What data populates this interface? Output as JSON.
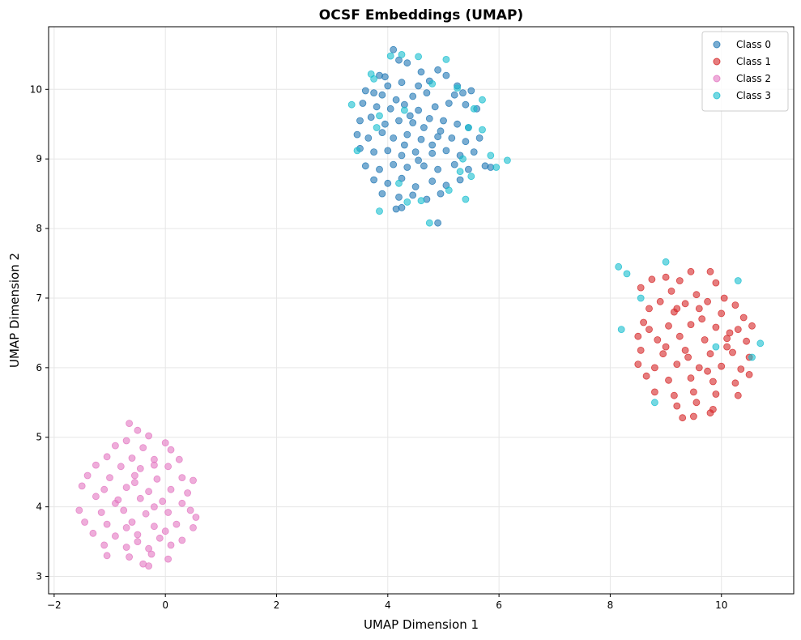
{
  "chart_data": {
    "type": "scatter",
    "title": "OCSF Embeddings (UMAP)",
    "xlabel": "UMAP Dimension 1",
    "ylabel": "UMAP Dimension 2",
    "xlim": [
      -2.1,
      11.3
    ],
    "ylim": [
      2.75,
      10.9
    ],
    "xticks": [
      -2,
      0,
      2,
      4,
      6,
      8,
      10
    ],
    "yticks": [
      3,
      4,
      5,
      6,
      7,
      8,
      9,
      10
    ],
    "grid": true,
    "legend_position": "top-right",
    "series": [
      {
        "name": "Class 0",
        "color": "#1f77b4",
        "points": [
          [
            4.1,
            10.57
          ],
          [
            4.2,
            10.42
          ],
          [
            4.35,
            10.38
          ],
          [
            3.85,
            10.2
          ],
          [
            4.6,
            10.25
          ],
          [
            4.9,
            10.28
          ],
          [
            5.05,
            10.2
          ],
          [
            4.25,
            10.1
          ],
          [
            4.0,
            10.05
          ],
          [
            3.75,
            9.95
          ],
          [
            3.6,
            9.98
          ],
          [
            3.9,
            9.92
          ],
          [
            4.15,
            9.85
          ],
          [
            4.45,
            9.9
          ],
          [
            4.7,
            9.95
          ],
          [
            5.2,
            9.92
          ],
          [
            5.35,
            9.95
          ],
          [
            5.5,
            9.98
          ],
          [
            3.55,
            9.8
          ],
          [
            3.8,
            9.75
          ],
          [
            4.05,
            9.72
          ],
          [
            4.3,
            9.78
          ],
          [
            4.55,
            9.7
          ],
          [
            4.85,
            9.75
          ],
          [
            5.1,
            9.8
          ],
          [
            5.4,
            9.78
          ],
          [
            5.6,
            9.72
          ],
          [
            3.5,
            9.55
          ],
          [
            3.7,
            9.6
          ],
          [
            3.95,
            9.5
          ],
          [
            4.2,
            9.55
          ],
          [
            4.45,
            9.52
          ],
          [
            4.75,
            9.58
          ],
          [
            5.0,
            9.55
          ],
          [
            5.25,
            9.5
          ],
          [
            5.45,
            9.45
          ],
          [
            3.45,
            9.35
          ],
          [
            3.65,
            9.3
          ],
          [
            3.9,
            9.38
          ],
          [
            4.1,
            9.3
          ],
          [
            4.35,
            9.35
          ],
          [
            4.6,
            9.28
          ],
          [
            4.9,
            9.32
          ],
          [
            5.15,
            9.3
          ],
          [
            5.4,
            9.25
          ],
          [
            5.65,
            9.3
          ],
          [
            3.5,
            9.15
          ],
          [
            3.75,
            9.1
          ],
          [
            4.0,
            9.12
          ],
          [
            4.25,
            9.05
          ],
          [
            4.5,
            9.1
          ],
          [
            4.8,
            9.08
          ],
          [
            5.05,
            9.12
          ],
          [
            5.3,
            9.05
          ],
          [
            5.55,
            9.1
          ],
          [
            3.6,
            8.9
          ],
          [
            3.85,
            8.85
          ],
          [
            4.1,
            8.92
          ],
          [
            4.35,
            8.88
          ],
          [
            4.65,
            8.9
          ],
          [
            4.9,
            8.85
          ],
          [
            5.2,
            8.92
          ],
          [
            5.45,
            8.85
          ],
          [
            5.75,
            8.9
          ],
          [
            5.85,
            8.88
          ],
          [
            3.75,
            8.7
          ],
          [
            4.0,
            8.65
          ],
          [
            4.25,
            8.72
          ],
          [
            4.5,
            8.6
          ],
          [
            4.8,
            8.68
          ],
          [
            5.05,
            8.62
          ],
          [
            5.3,
            8.7
          ],
          [
            3.9,
            8.5
          ],
          [
            4.2,
            8.45
          ],
          [
            4.45,
            8.48
          ],
          [
            4.7,
            8.42
          ],
          [
            4.95,
            8.5
          ],
          [
            4.25,
            8.3
          ],
          [
            4.15,
            8.28
          ],
          [
            4.9,
            8.08
          ],
          [
            4.55,
            10.05
          ],
          [
            4.75,
            10.12
          ],
          [
            5.25,
            10.05
          ],
          [
            3.95,
            10.18
          ],
          [
            4.4,
            9.62
          ],
          [
            4.65,
            9.45
          ],
          [
            4.95,
            9.4
          ],
          [
            4.3,
            9.2
          ],
          [
            4.55,
            8.98
          ],
          [
            4.8,
            9.2
          ]
        ]
      },
      {
        "name": "Class 1",
        "color": "#d62728",
        "points": [
          [
            9.45,
            7.38
          ],
          [
            9.8,
            7.38
          ],
          [
            9.0,
            7.3
          ],
          [
            9.25,
            7.25
          ],
          [
            9.9,
            7.22
          ],
          [
            8.75,
            7.27
          ],
          [
            8.55,
            7.15
          ],
          [
            9.1,
            7.1
          ],
          [
            9.55,
            7.05
          ],
          [
            10.05,
            7.0
          ],
          [
            8.9,
            6.95
          ],
          [
            9.35,
            6.92
          ],
          [
            9.75,
            6.95
          ],
          [
            10.25,
            6.9
          ],
          [
            8.7,
            6.85
          ],
          [
            9.15,
            6.8
          ],
          [
            9.6,
            6.85
          ],
          [
            10.0,
            6.78
          ],
          [
            10.4,
            6.72
          ],
          [
            8.6,
            6.65
          ],
          [
            9.05,
            6.6
          ],
          [
            9.45,
            6.62
          ],
          [
            9.9,
            6.58
          ],
          [
            10.3,
            6.55
          ],
          [
            10.55,
            6.6
          ],
          [
            8.5,
            6.45
          ],
          [
            8.85,
            6.4
          ],
          [
            9.25,
            6.45
          ],
          [
            9.7,
            6.4
          ],
          [
            10.1,
            6.42
          ],
          [
            10.45,
            6.38
          ],
          [
            8.55,
            6.25
          ],
          [
            8.95,
            6.2
          ],
          [
            9.35,
            6.25
          ],
          [
            9.8,
            6.2
          ],
          [
            10.2,
            6.22
          ],
          [
            10.5,
            6.15
          ],
          [
            8.5,
            6.05
          ],
          [
            8.8,
            6.0
          ],
          [
            9.2,
            6.05
          ],
          [
            9.6,
            6.0
          ],
          [
            10.0,
            6.02
          ],
          [
            10.35,
            5.98
          ],
          [
            10.5,
            5.9
          ],
          [
            8.65,
            5.88
          ],
          [
            9.05,
            5.82
          ],
          [
            9.45,
            5.85
          ],
          [
            9.85,
            5.8
          ],
          [
            10.25,
            5.78
          ],
          [
            8.8,
            5.65
          ],
          [
            9.15,
            5.6
          ],
          [
            9.5,
            5.65
          ],
          [
            9.9,
            5.62
          ],
          [
            10.3,
            5.6
          ],
          [
            9.2,
            5.45
          ],
          [
            9.55,
            5.5
          ],
          [
            9.85,
            5.4
          ],
          [
            9.8,
            5.35
          ],
          [
            9.3,
            5.28
          ],
          [
            9.5,
            5.3
          ],
          [
            9.0,
            6.3
          ],
          [
            9.4,
            6.15
          ],
          [
            9.65,
            6.7
          ],
          [
            10.15,
            6.5
          ],
          [
            8.7,
            6.55
          ],
          [
            9.2,
            6.85
          ],
          [
            9.75,
            5.95
          ],
          [
            10.1,
            6.3
          ]
        ]
      },
      {
        "name": "Class 2",
        "color": "#e377c2",
        "points": [
          [
            -0.65,
            5.2
          ],
          [
            -0.5,
            5.1
          ],
          [
            -0.3,
            5.02
          ],
          [
            -0.7,
            4.95
          ],
          [
            0.0,
            4.92
          ],
          [
            -0.9,
            4.88
          ],
          [
            -0.4,
            4.85
          ],
          [
            0.1,
            4.82
          ],
          [
            -1.05,
            4.72
          ],
          [
            -0.6,
            4.7
          ],
          [
            -0.2,
            4.68
          ],
          [
            0.25,
            4.68
          ],
          [
            -1.25,
            4.6
          ],
          [
            -0.8,
            4.58
          ],
          [
            -0.45,
            4.55
          ],
          [
            0.05,
            4.58
          ],
          [
            -1.4,
            4.45
          ],
          [
            -1.0,
            4.42
          ],
          [
            -0.55,
            4.45
          ],
          [
            -0.15,
            4.4
          ],
          [
            0.3,
            4.42
          ],
          [
            0.5,
            4.38
          ],
          [
            -1.5,
            4.3
          ],
          [
            -1.1,
            4.25
          ],
          [
            -0.7,
            4.28
          ],
          [
            -0.3,
            4.22
          ],
          [
            0.1,
            4.25
          ],
          [
            0.4,
            4.2
          ],
          [
            -1.25,
            4.15
          ],
          [
            -0.85,
            4.1
          ],
          [
            -0.45,
            4.12
          ],
          [
            -0.05,
            4.08
          ],
          [
            0.3,
            4.05
          ],
          [
            -1.55,
            3.95
          ],
          [
            -1.15,
            3.92
          ],
          [
            -0.75,
            3.95
          ],
          [
            -0.35,
            3.9
          ],
          [
            0.05,
            3.92
          ],
          [
            0.45,
            3.95
          ],
          [
            0.55,
            3.85
          ],
          [
            -1.45,
            3.78
          ],
          [
            -1.05,
            3.75
          ],
          [
            -0.6,
            3.78
          ],
          [
            -0.2,
            3.72
          ],
          [
            0.2,
            3.75
          ],
          [
            0.5,
            3.7
          ],
          [
            -1.3,
            3.62
          ],
          [
            -0.9,
            3.58
          ],
          [
            -0.5,
            3.6
          ],
          [
            -0.1,
            3.55
          ],
          [
            0.3,
            3.52
          ],
          [
            -1.1,
            3.45
          ],
          [
            -0.7,
            3.42
          ],
          [
            -0.3,
            3.4
          ],
          [
            0.1,
            3.45
          ],
          [
            -1.05,
            3.3
          ],
          [
            -0.65,
            3.28
          ],
          [
            -0.25,
            3.32
          ],
          [
            0.05,
            3.25
          ],
          [
            -0.4,
            3.18
          ],
          [
            -0.3,
            3.15
          ],
          [
            -0.2,
            4.6
          ],
          [
            -0.55,
            4.35
          ],
          [
            -0.9,
            4.05
          ],
          [
            -0.2,
            4.0
          ],
          [
            -0.7,
            3.7
          ],
          [
            0.0,
            3.65
          ],
          [
            -0.5,
            3.5
          ]
        ]
      },
      {
        "name": "Class 3",
        "color": "#17becf",
        "points": [
          [
            4.25,
            10.5
          ],
          [
            4.05,
            10.48
          ],
          [
            4.55,
            10.47
          ],
          [
            5.05,
            10.43
          ],
          [
            3.7,
            10.22
          ],
          [
            3.75,
            10.15
          ],
          [
            4.8,
            10.08
          ],
          [
            5.25,
            10.02
          ],
          [
            3.35,
            9.78
          ],
          [
            3.85,
            9.62
          ],
          [
            5.7,
            9.85
          ],
          [
            5.55,
            9.72
          ],
          [
            5.45,
            9.45
          ],
          [
            5.7,
            9.42
          ],
          [
            3.45,
            9.12
          ],
          [
            5.35,
            9.0
          ],
          [
            5.85,
            9.05
          ],
          [
            6.15,
            8.98
          ],
          [
            5.95,
            8.88
          ],
          [
            5.3,
            8.82
          ],
          [
            5.5,
            8.75
          ],
          [
            4.2,
            8.65
          ],
          [
            5.1,
            8.55
          ],
          [
            5.4,
            8.42
          ],
          [
            3.85,
            8.25
          ],
          [
            4.35,
            8.38
          ],
          [
            4.75,
            8.08
          ],
          [
            4.6,
            8.4
          ],
          [
            3.8,
            9.45
          ],
          [
            4.3,
            9.7
          ],
          [
            8.15,
            7.45
          ],
          [
            8.3,
            7.35
          ],
          [
            9.0,
            7.52
          ],
          [
            8.55,
            7.0
          ],
          [
            10.3,
            7.25
          ],
          [
            8.2,
            6.55
          ],
          [
            9.9,
            6.3
          ],
          [
            10.55,
            6.15
          ],
          [
            10.7,
            6.35
          ],
          [
            8.8,
            5.5
          ]
        ]
      }
    ]
  }
}
